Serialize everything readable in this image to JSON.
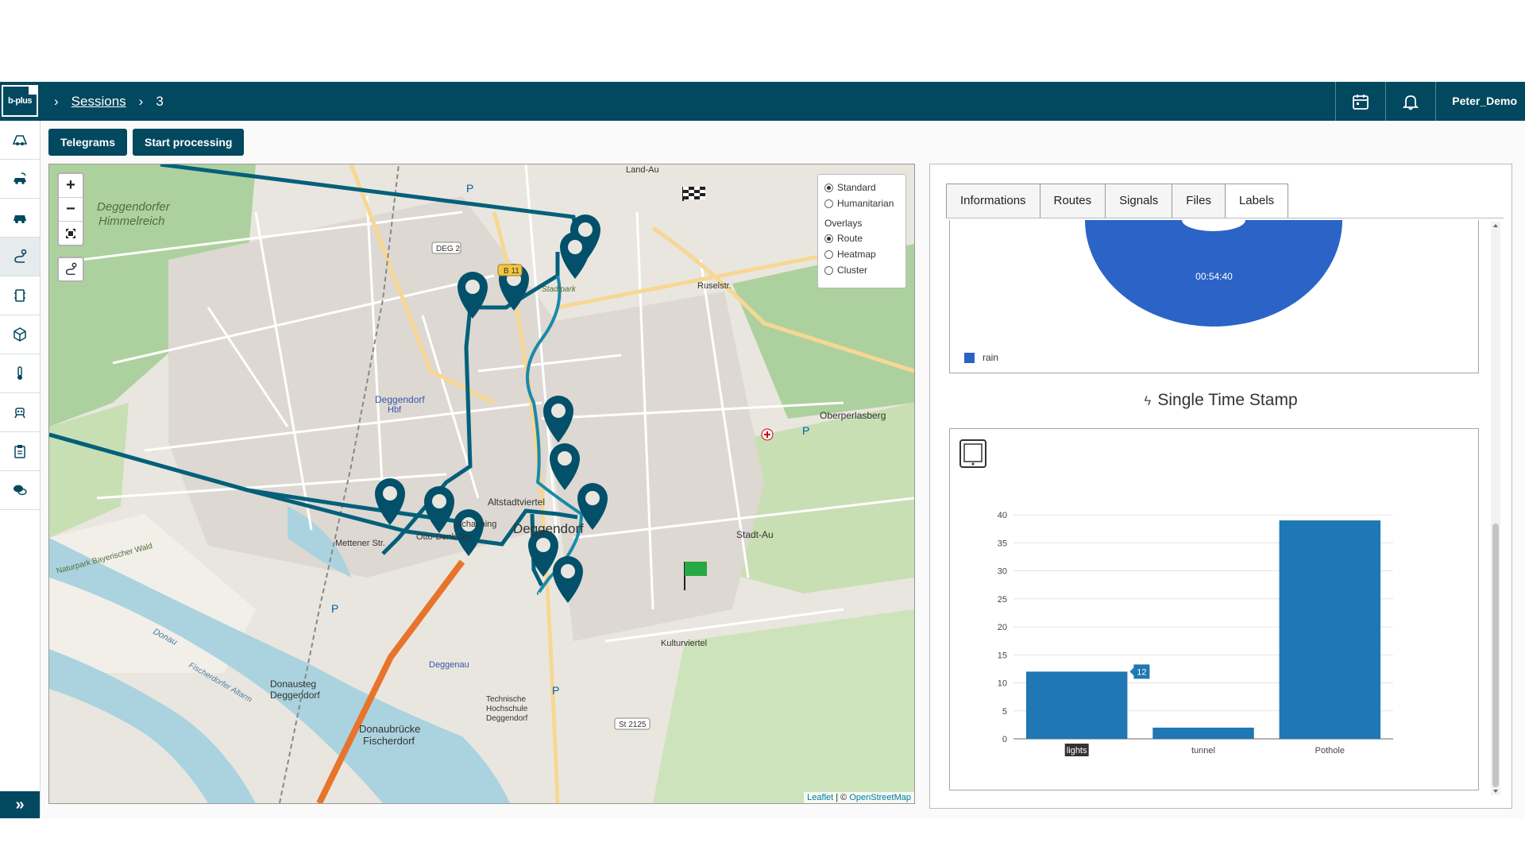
{
  "app": {
    "logo_text": "b-plus"
  },
  "breadcrumb": {
    "sessions": "Sessions",
    "separator": "›",
    "current": "3"
  },
  "user": {
    "name": "Peter_Demo"
  },
  "actions": {
    "telegrams": "Telegrams",
    "start_processing": "Start processing"
  },
  "sidebar": {
    "items": [
      "car-map-icon",
      "car-wifi-icon",
      "car-icon",
      "route-icon",
      "device-icon",
      "cube-icon",
      "thermometer-icon",
      "robot-icon",
      "clipboard-icon",
      "chat-icon"
    ],
    "active_index": 3
  },
  "map": {
    "zoom_in": "+",
    "zoom_out": "−",
    "layers": {
      "base": [
        "Standard",
        "Humanitarian"
      ],
      "base_selected": "Standard",
      "overlays_title": "Overlays",
      "overlays": [
        "Route",
        "Heatmap",
        "Cluster"
      ],
      "overlay_selected": "Route"
    },
    "attribution_leaflet": "Leaflet",
    "attribution_sep": " | © ",
    "attribution_osm": "OpenStreetMap",
    "labels": [
      "Deggendorfer Himmelreich",
      "Deggendorf Hbf",
      "Deggendorf",
      "Altstadtviertel",
      "Stadt-Au",
      "Oberperlasberg",
      "Donausteg Deggendorf",
      "Donaubrücke Fischerdorf",
      "Technische Hochschule Deggendorf",
      "Stadtpark",
      "Land-Au",
      "Schaching",
      "Mettener Str.",
      "Otto-Denk-Str.",
      "Ruselstr.",
      "Naturpark Bayerischer Wald",
      "Donau",
      "Fischerdorfer Altarm",
      "Deggenau",
      "Kulturviertel"
    ],
    "road_badges": [
      "DEG 2",
      "B 11",
      "St 2125"
    ],
    "colors": {
      "route": "#04607a",
      "route_light": "#1a8aa8",
      "highway": "#e8742c",
      "water": "#aad3df",
      "forest": "#add19e"
    }
  },
  "panel": {
    "tabs": [
      "Informations",
      "Routes",
      "Signals",
      "Files",
      "Labels"
    ],
    "active_tab": "Labels",
    "pie": {
      "label": "00:54:40",
      "legend": "rain",
      "color": "#2b63c7"
    },
    "section_title": "Single Time Stamp"
  },
  "chart_data": {
    "type": "bar",
    "categories": [
      "lights",
      "tunnel",
      "Pothole"
    ],
    "values": [
      12,
      2,
      39
    ],
    "ylim": [
      0,
      40
    ],
    "yticks": [
      0,
      5,
      10,
      15,
      20,
      25,
      30,
      35,
      40
    ],
    "data_labels": [
      {
        "category": "lights",
        "text": "12"
      }
    ],
    "color": "#1f77b4",
    "highlighted_category": "lights"
  }
}
